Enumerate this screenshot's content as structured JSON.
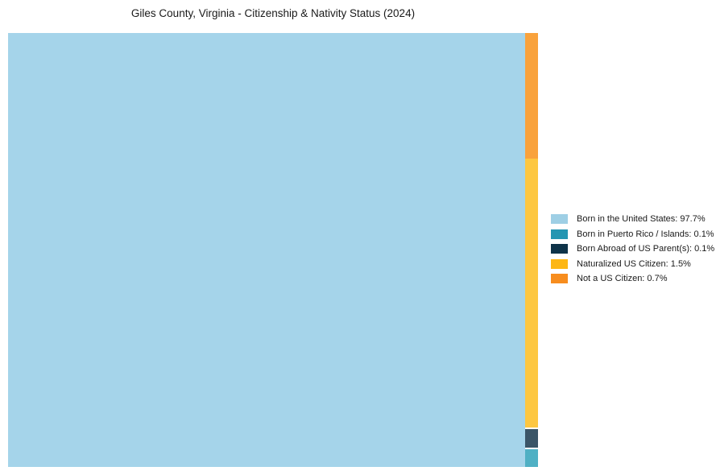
{
  "title": "Giles County, Virginia - Citizenship & Nativity Status (2024)",
  "background_color": "#ffffff",
  "text_color": "#1a1a1a",
  "chart_data": {
    "type": "treemap",
    "title": "Giles County, Virginia - Citizenship & Nativity Status (2024)",
    "categories": [
      "Born in the United States",
      "Born in Puerto Rico / Islands",
      "Born Abroad of US Parent(s)",
      "Naturalized US Citizen",
      "Not a US Citizen"
    ],
    "values": [
      97.7,
      0.1,
      0.1,
      1.5,
      0.7
    ],
    "legend_labels": [
      "Born in the United States: 97.7%",
      "Born in Puerto Rico / Islands: 0.1%",
      "Born Abroad of US Parent(s): 0.1%",
      "Naturalized US Citizen: 1.5%",
      "Not a US Citizen: 0.7%"
    ],
    "legend_colors": [
      "#9ecfe5",
      "#2496b2",
      "#0e3349",
      "#fdb714",
      "#f78d1e"
    ],
    "block_colors": [
      "#a5d4ea",
      "#4fb0c4",
      "#3b5567",
      "#fdc741",
      "#f9a23c"
    ],
    "legend_position": "right",
    "treemap_layout": {
      "main_index": 0,
      "column_indices_top_to_bottom": [
        4,
        3,
        2,
        1
      ],
      "column_gap_before_positions": [
        2,
        3
      ]
    }
  }
}
